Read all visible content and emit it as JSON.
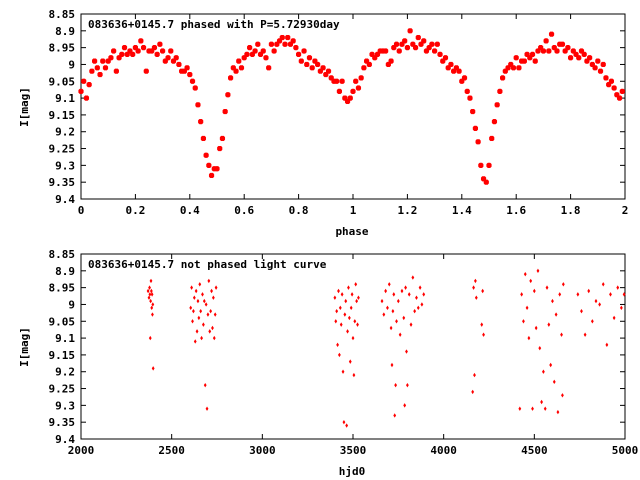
{
  "chart_data": [
    {
      "type": "scatter",
      "title": "083636+0145.7 phased with P=5.72930day",
      "xlabel": "phase",
      "ylabel": "I[mag]",
      "xlim": [
        0,
        2
      ],
      "ylim": [
        8.85,
        9.4
      ],
      "y_inverted": true,
      "grid": false,
      "marker": "star",
      "color": "#ff0000",
      "xticks": [
        "0",
        "0.2",
        "0.4",
        "0.6",
        "0.8",
        "1",
        "1.2",
        "1.4",
        "1.6",
        "1.8",
        "2"
      ],
      "yticks": [
        "8.85",
        "8.9",
        "8.95",
        "9",
        "9.05",
        "9.1",
        "9.15",
        "9.2",
        "9.25",
        "9.3",
        "9.35",
        "9.4"
      ],
      "points": [
        [
          0.0,
          9.08
        ],
        [
          0.01,
          9.05
        ],
        [
          0.02,
          9.1
        ],
        [
          0.03,
          9.06
        ],
        [
          0.04,
          9.02
        ],
        [
          0.05,
          8.99
        ],
        [
          0.06,
          9.01
        ],
        [
          0.07,
          9.03
        ],
        [
          0.08,
          8.99
        ],
        [
          0.09,
          9.01
        ],
        [
          0.1,
          8.99
        ],
        [
          0.11,
          8.98
        ],
        [
          0.12,
          8.96
        ],
        [
          0.13,
          9.02
        ],
        [
          0.14,
          8.98
        ],
        [
          0.15,
          8.97
        ],
        [
          0.16,
          8.95
        ],
        [
          0.17,
          8.97
        ],
        [
          0.18,
          8.96
        ],
        [
          0.19,
          8.97
        ],
        [
          0.2,
          8.95
        ],
        [
          0.21,
          8.96
        ],
        [
          0.22,
          8.93
        ],
        [
          0.23,
          8.95
        ],
        [
          0.24,
          9.02
        ],
        [
          0.25,
          8.96
        ],
        [
          0.26,
          8.96
        ],
        [
          0.27,
          8.95
        ],
        [
          0.28,
          8.97
        ],
        [
          0.29,
          8.94
        ],
        [
          0.3,
          8.96
        ],
        [
          0.31,
          8.99
        ],
        [
          0.32,
          8.98
        ],
        [
          0.33,
          8.96
        ],
        [
          0.34,
          8.99
        ],
        [
          0.35,
          8.98
        ],
        [
          0.36,
          9.0
        ],
        [
          0.37,
          9.02
        ],
        [
          0.38,
          9.02
        ],
        [
          0.39,
          9.01
        ],
        [
          0.4,
          9.03
        ],
        [
          0.41,
          9.05
        ],
        [
          0.42,
          9.07
        ],
        [
          0.43,
          9.12
        ],
        [
          0.44,
          9.17
        ],
        [
          0.45,
          9.22
        ],
        [
          0.46,
          9.27
        ],
        [
          0.47,
          9.3
        ],
        [
          0.48,
          9.33
        ],
        [
          0.49,
          9.31
        ],
        [
          0.5,
          9.31
        ],
        [
          0.51,
          9.25
        ],
        [
          0.52,
          9.22
        ],
        [
          0.53,
          9.14
        ],
        [
          0.54,
          9.09
        ],
        [
          0.55,
          9.04
        ],
        [
          0.56,
          9.01
        ],
        [
          0.57,
          9.02
        ],
        [
          0.58,
          8.99
        ],
        [
          0.59,
          9.01
        ],
        [
          0.6,
          8.98
        ],
        [
          0.61,
          8.97
        ],
        [
          0.62,
          8.95
        ],
        [
          0.63,
          8.97
        ],
        [
          0.64,
          8.96
        ],
        [
          0.65,
          8.94
        ],
        [
          0.66,
          8.97
        ],
        [
          0.67,
          8.96
        ],
        [
          0.68,
          8.98
        ],
        [
          0.69,
          9.01
        ],
        [
          0.7,
          8.94
        ],
        [
          0.71,
          8.96
        ],
        [
          0.72,
          8.94
        ],
        [
          0.73,
          8.93
        ],
        [
          0.74,
          8.92
        ],
        [
          0.75,
          8.94
        ],
        [
          0.76,
          8.92
        ],
        [
          0.77,
          8.94
        ],
        [
          0.78,
          8.93
        ],
        [
          0.79,
          8.95
        ],
        [
          0.8,
          8.97
        ],
        [
          0.81,
          8.99
        ],
        [
          0.82,
          8.96
        ],
        [
          0.83,
          9.0
        ],
        [
          0.84,
          8.98
        ],
        [
          0.85,
          9.01
        ],
        [
          0.86,
          8.99
        ],
        [
          0.87,
          9.0
        ],
        [
          0.88,
          9.02
        ],
        [
          0.89,
          9.01
        ],
        [
          0.9,
          9.03
        ],
        [
          0.91,
          9.02
        ],
        [
          0.92,
          9.04
        ],
        [
          0.93,
          9.05
        ],
        [
          0.94,
          9.05
        ],
        [
          0.95,
          9.08
        ],
        [
          0.96,
          9.05
        ],
        [
          0.97,
          9.1
        ],
        [
          0.98,
          9.11
        ],
        [
          0.99,
          9.1
        ],
        [
          1.0,
          9.08
        ],
        [
          1.01,
          9.05
        ],
        [
          1.02,
          9.07
        ],
        [
          1.03,
          9.04
        ],
        [
          1.04,
          9.01
        ],
        [
          1.05,
          8.99
        ],
        [
          1.06,
          9.0
        ],
        [
          1.07,
          8.97
        ],
        [
          1.08,
          8.98
        ],
        [
          1.09,
          8.97
        ],
        [
          1.1,
          8.96
        ],
        [
          1.11,
          8.96
        ],
        [
          1.12,
          8.96
        ],
        [
          1.13,
          9.0
        ],
        [
          1.14,
          8.99
        ],
        [
          1.15,
          8.95
        ],
        [
          1.16,
          8.94
        ],
        [
          1.17,
          8.96
        ],
        [
          1.18,
          8.94
        ],
        [
          1.19,
          8.93
        ],
        [
          1.2,
          8.95
        ],
        [
          1.21,
          8.9
        ],
        [
          1.22,
          8.94
        ],
        [
          1.23,
          8.95
        ],
        [
          1.24,
          8.92
        ],
        [
          1.25,
          8.94
        ],
        [
          1.26,
          8.93
        ],
        [
          1.27,
          8.96
        ],
        [
          1.28,
          8.95
        ],
        [
          1.29,
          8.94
        ],
        [
          1.3,
          8.96
        ],
        [
          1.31,
          8.94
        ],
        [
          1.32,
          8.97
        ],
        [
          1.33,
          8.99
        ],
        [
          1.34,
          8.98
        ],
        [
          1.35,
          9.01
        ],
        [
          1.36,
          9.0
        ],
        [
          1.37,
          9.02
        ],
        [
          1.38,
          9.01
        ],
        [
          1.39,
          9.02
        ],
        [
          1.4,
          9.05
        ],
        [
          1.41,
          9.04
        ],
        [
          1.42,
          9.08
        ],
        [
          1.43,
          9.1
        ],
        [
          1.44,
          9.14
        ],
        [
          1.45,
          9.19
        ],
        [
          1.46,
          9.23
        ],
        [
          1.47,
          9.3
        ],
        [
          1.48,
          9.34
        ],
        [
          1.49,
          9.35
        ],
        [
          1.5,
          9.3
        ],
        [
          1.51,
          9.22
        ],
        [
          1.52,
          9.17
        ],
        [
          1.53,
          9.12
        ],
        [
          1.54,
          9.08
        ],
        [
          1.55,
          9.04
        ],
        [
          1.56,
          9.02
        ],
        [
          1.57,
          9.01
        ],
        [
          1.58,
          9.0
        ],
        [
          1.59,
          9.01
        ],
        [
          1.6,
          8.98
        ],
        [
          1.61,
          9.01
        ],
        [
          1.62,
          8.99
        ],
        [
          1.63,
          8.99
        ],
        [
          1.64,
          8.97
        ],
        [
          1.65,
          8.98
        ],
        [
          1.66,
          8.97
        ],
        [
          1.67,
          8.99
        ],
        [
          1.68,
          8.96
        ],
        [
          1.69,
          8.95
        ],
        [
          1.7,
          8.96
        ],
        [
          1.71,
          8.93
        ],
        [
          1.72,
          8.96
        ],
        [
          1.73,
          8.91
        ],
        [
          1.74,
          8.95
        ],
        [
          1.75,
          8.96
        ],
        [
          1.76,
          8.94
        ],
        [
          1.77,
          8.94
        ],
        [
          1.78,
          8.96
        ],
        [
          1.79,
          8.95
        ],
        [
          1.8,
          8.98
        ],
        [
          1.81,
          8.96
        ],
        [
          1.82,
          8.97
        ],
        [
          1.83,
          8.98
        ],
        [
          1.84,
          8.96
        ],
        [
          1.85,
          8.97
        ],
        [
          1.86,
          8.99
        ],
        [
          1.87,
          8.98
        ],
        [
          1.88,
          9.0
        ],
        [
          1.89,
          9.01
        ],
        [
          1.9,
          8.99
        ],
        [
          1.91,
          9.02
        ],
        [
          1.92,
          9.0
        ],
        [
          1.93,
          9.04
        ],
        [
          1.94,
          9.06
        ],
        [
          1.95,
          9.05
        ],
        [
          1.96,
          9.07
        ],
        [
          1.97,
          9.09
        ],
        [
          1.98,
          9.1
        ],
        [
          1.99,
          9.08
        ]
      ]
    },
    {
      "type": "scatter",
      "title": "083636+0145.7 not phased light curve",
      "xlabel": "hjd0",
      "ylabel": "I[mag]",
      "xlim": [
        2000,
        5000
      ],
      "ylim": [
        8.85,
        9.4
      ],
      "y_inverted": true,
      "grid": false,
      "marker": "dot",
      "color": "#ff0000",
      "xticks": [
        "2000",
        "2500",
        "3000",
        "3500",
        "4000",
        "4500",
        "5000"
      ],
      "yticks": [
        "8.85",
        "8.9",
        "8.95",
        "9",
        "9.05",
        "9.1",
        "9.15",
        "9.2",
        "9.25",
        "9.3",
        "9.35",
        "9.4"
      ],
      "points": [
        [
          2370,
          8.96
        ],
        [
          2375,
          8.98
        ],
        [
          2378,
          8.95
        ],
        [
          2380,
          8.97
        ],
        [
          2382,
          9.1
        ],
        [
          2384,
          8.99
        ],
        [
          2386,
          8.93
        ],
        [
          2388,
          8.96
        ],
        [
          2390,
          9.01
        ],
        [
          2392,
          8.97
        ],
        [
          2394,
          9.03
        ],
        [
          2396,
          9.0
        ],
        [
          2398,
          9.19
        ],
        [
          2605,
          9.01
        ],
        [
          2610,
          8.95
        ],
        [
          2615,
          9.05
        ],
        [
          2620,
          9.02
        ],
        [
          2625,
          8.98
        ],
        [
          2630,
          9.11
        ],
        [
          2635,
          8.96
        ],
        [
          2640,
          9.08
        ],
        [
          2645,
          8.99
        ],
        [
          2650,
          9.04
        ],
        [
          2655,
          8.94
        ],
        [
          2660,
          9.02
        ],
        [
          2665,
          9.1
        ],
        [
          2670,
          8.97
        ],
        [
          2675,
          9.06
        ],
        [
          2680,
          8.99
        ],
        [
          2685,
          9.24
        ],
        [
          2690,
          9.0
        ],
        [
          2695,
          9.31
        ],
        [
          2700,
          9.03
        ],
        [
          2705,
          8.93
        ],
        [
          2710,
          9.08
        ],
        [
          2715,
          9.02
        ],
        [
          2720,
          8.96
        ],
        [
          2725,
          9.07
        ],
        [
          2730,
          8.98
        ],
        [
          2735,
          9.1
        ],
        [
          2740,
          9.03
        ],
        [
          2745,
          8.95
        ],
        [
          3400,
          8.98
        ],
        [
          3405,
          9.05
        ],
        [
          3410,
          9.02
        ],
        [
          3415,
          9.12
        ],
        [
          3420,
          8.96
        ],
        [
          3425,
          9.15
        ],
        [
          3430,
          9.01
        ],
        [
          3435,
          9.06
        ],
        [
          3440,
          8.97
        ],
        [
          3445,
          9.2
        ],
        [
          3450,
          9.35
        ],
        [
          3455,
          9.03
        ],
        [
          3460,
          8.99
        ],
        [
          3465,
          9.36
        ],
        [
          3470,
          9.08
        ],
        [
          3475,
          8.95
        ],
        [
          3480,
          9.04
        ],
        [
          3485,
          9.17
        ],
        [
          3490,
          9.01
        ],
        [
          3495,
          8.97
        ],
        [
          3500,
          9.1
        ],
        [
          3505,
          9.21
        ],
        [
          3510,
          9.05
        ],
        [
          3515,
          8.94
        ],
        [
          3520,
          8.99
        ],
        [
          3525,
          9.06
        ],
        [
          3530,
          8.98
        ],
        [
          3660,
          8.99
        ],
        [
          3670,
          9.03
        ],
        [
          3680,
          8.96
        ],
        [
          3690,
          9.01
        ],
        [
          3700,
          8.94
        ],
        [
          3710,
          9.07
        ],
        [
          3715,
          9.18
        ],
        [
          3720,
          9.02
        ],
        [
          3725,
          8.97
        ],
        [
          3730,
          9.33
        ],
        [
          3735,
          9.24
        ],
        [
          3740,
          9.05
        ],
        [
          3750,
          8.99
        ],
        [
          3760,
          9.09
        ],
        [
          3770,
          8.96
        ],
        [
          3780,
          9.04
        ],
        [
          3785,
          9.3
        ],
        [
          3790,
          8.95
        ],
        [
          3795,
          9.14
        ],
        [
          3800,
          9.24
        ],
        [
          3810,
          8.97
        ],
        [
          3820,
          9.06
        ],
        [
          3830,
          8.92
        ],
        [
          3840,
          9.02
        ],
        [
          3850,
          8.98
        ],
        [
          3860,
          9.01
        ],
        [
          3870,
          8.95
        ],
        [
          3880,
          9.0
        ],
        [
          3890,
          8.97
        ],
        [
          4160,
          9.26
        ],
        [
          4165,
          8.95
        ],
        [
          4170,
          9.21
        ],
        [
          4175,
          8.93
        ],
        [
          4180,
          8.98
        ],
        [
          4210,
          9.06
        ],
        [
          4215,
          8.96
        ],
        [
          4220,
          9.09
        ],
        [
          4420,
          9.31
        ],
        [
          4430,
          8.97
        ],
        [
          4440,
          9.05
        ],
        [
          4450,
          8.91
        ],
        [
          4460,
          9.01
        ],
        [
          4470,
          9.1
        ],
        [
          4480,
          8.93
        ],
        [
          4490,
          9.31
        ],
        [
          4500,
          8.96
        ],
        [
          4510,
          9.07
        ],
        [
          4520,
          8.9
        ],
        [
          4530,
          9.13
        ],
        [
          4540,
          9.29
        ],
        [
          4550,
          9.2
        ],
        [
          4560,
          9.31
        ],
        [
          4570,
          8.95
        ],
        [
          4580,
          9.06
        ],
        [
          4590,
          9.18
        ],
        [
          4600,
          8.99
        ],
        [
          4610,
          9.23
        ],
        [
          4620,
          9.03
        ],
        [
          4630,
          9.32
        ],
        [
          4640,
          8.97
        ],
        [
          4650,
          9.09
        ],
        [
          4655,
          9.27
        ],
        [
          4660,
          8.94
        ],
        [
          4740,
          8.97
        ],
        [
          4760,
          9.02
        ],
        [
          4780,
          9.09
        ],
        [
          4800,
          8.96
        ],
        [
          4820,
          9.05
        ],
        [
          4840,
          8.99
        ],
        [
          4860,
          9.0
        ],
        [
          4880,
          8.94
        ],
        [
          4900,
          9.12
        ],
        [
          4920,
          8.97
        ],
        [
          4940,
          9.04
        ],
        [
          4960,
          8.95
        ],
        [
          4980,
          9.01
        ],
        [
          4995,
          8.97
        ]
      ]
    }
  ]
}
